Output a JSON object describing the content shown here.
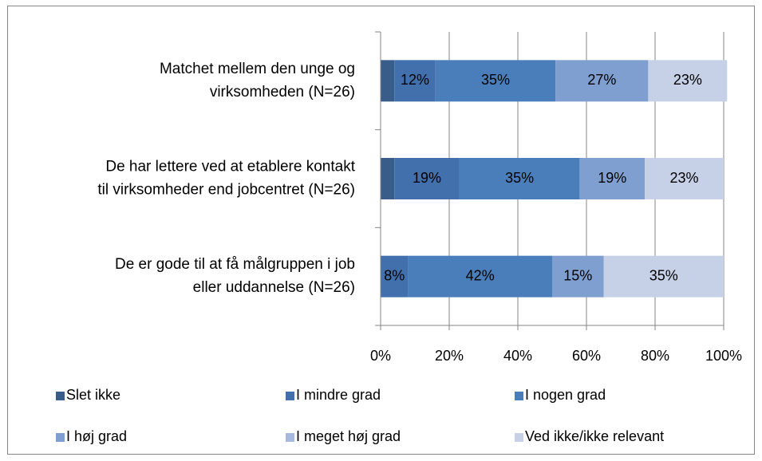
{
  "chart_data": {
    "type": "bar",
    "orientation": "horizontal",
    "stacked": true,
    "categories": [
      [
        "Matchet mellem den unge og",
        "virksomheden (N=26)"
      ],
      [
        "De har lettere ved at etablere kontakt",
        "til virksomheder end jobcentret (N=26)"
      ],
      [
        "De er gode til at få målgruppen i job",
        "eller uddannelse (N=26)"
      ]
    ],
    "series": [
      {
        "name": "Slet ikke",
        "color": "#385d8a",
        "values": [
          4,
          4,
          0
        ],
        "value_labels": [
          null,
          null,
          null
        ]
      },
      {
        "name": "I mindre grad",
        "color": "#4170ad",
        "values": [
          12,
          19,
          8
        ],
        "value_labels": [
          "12%",
          "19%",
          "8%"
        ]
      },
      {
        "name": "I nogen grad",
        "color": "#4a7ebb",
        "values": [
          35,
          35,
          42
        ],
        "value_labels": [
          "35%",
          "35%",
          "42%"
        ]
      },
      {
        "name": "I høj grad",
        "color": "#7f9fd1",
        "values": [
          27,
          19,
          15
        ],
        "value_labels": [
          "27%",
          "19%",
          "15%"
        ]
      },
      {
        "name": "I meget høj grad",
        "color": "#a7b9dd",
        "values": [
          0,
          0,
          0
        ],
        "value_labels": [
          null,
          null,
          null
        ]
      },
      {
        "name": "Ved ikke/ikke relevant",
        "color": "#c6d1e8",
        "values": [
          23,
          23,
          35
        ],
        "value_labels": [
          "23%",
          "23%",
          "35%"
        ]
      }
    ],
    "xlim": [
      0,
      100
    ],
    "xticks": [
      {
        "value": 0,
        "label": "0%"
      },
      {
        "value": 20,
        "label": "20%"
      },
      {
        "value": 40,
        "label": "40%"
      },
      {
        "value": 60,
        "label": "60%"
      },
      {
        "value": 80,
        "label": "80%"
      },
      {
        "value": 100,
        "label": "100%"
      }
    ],
    "grid": true,
    "legend": "bottom"
  }
}
